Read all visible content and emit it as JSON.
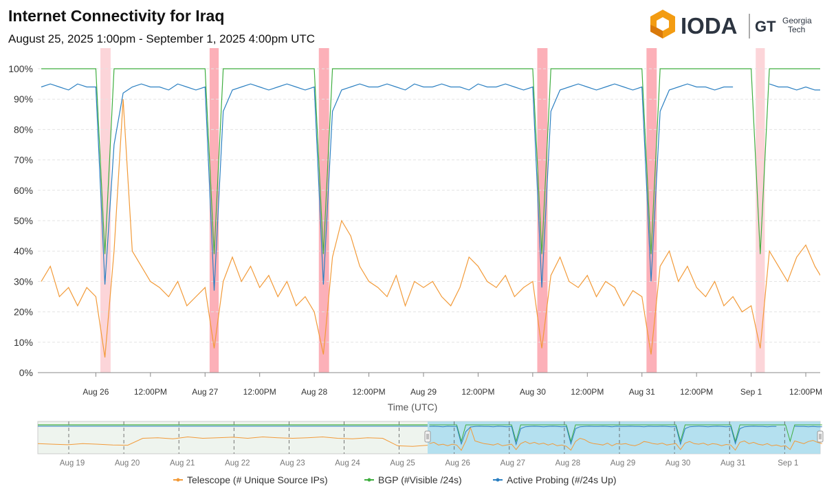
{
  "header": {
    "title": "Internet Connectivity for  Iraq",
    "subtitle": "August 25, 2025 1:00pm - September 1, 2025 4:00pm UTC"
  },
  "logo": {
    "ioda": "IODA",
    "gt": "GT",
    "gt_name_line1": "Georgia",
    "gt_name_line2": "Tech"
  },
  "chart_data": {
    "type": "line",
    "xlabel": "Time (UTC)",
    "ylabel": "",
    "ylim": [
      0,
      100
    ],
    "xlim": [
      "2025-08-25T11:15",
      "2025-09-01T15:10"
    ],
    "y_ticks": [
      "0%",
      "10%",
      "20%",
      "30%",
      "40%",
      "50%",
      "60%",
      "70%",
      "80%",
      "90%",
      "100%"
    ],
    "x_ticks": [
      {
        "t": "2025-08-26T00:00",
        "label": "Aug 26"
      },
      {
        "t": "2025-08-26T12:00",
        "label": "12:00PM"
      },
      {
        "t": "2025-08-27T00:00",
        "label": "Aug 27"
      },
      {
        "t": "2025-08-27T12:00",
        "label": "12:00PM"
      },
      {
        "t": "2025-08-28T00:00",
        "label": "Aug 28"
      },
      {
        "t": "2025-08-28T12:00",
        "label": "12:00PM"
      },
      {
        "t": "2025-08-29T00:00",
        "label": "Aug 29"
      },
      {
        "t": "2025-08-29T12:00",
        "label": "12:00PM"
      },
      {
        "t": "2025-08-30T00:00",
        "label": "Aug 30"
      },
      {
        "t": "2025-08-30T12:00",
        "label": "12:00PM"
      },
      {
        "t": "2025-08-31T00:00",
        "label": "Aug 31"
      },
      {
        "t": "2025-08-31T12:00",
        "label": "12:00PM"
      },
      {
        "t": "2025-09-01T00:00",
        "label": "Sep 1"
      },
      {
        "t": "2025-09-01T12:00",
        "label": "12:00PM"
      }
    ],
    "grid": true,
    "legend_position": "bottom",
    "x_start": "2025-08-25T12:00",
    "step_hours": 2,
    "series": [
      {
        "name": "Telescope (# Unique Source IPs)",
        "color": "#f29a38",
        "values": [
          30,
          35,
          25,
          28,
          22,
          28,
          25,
          5,
          40,
          90,
          40,
          35,
          30,
          28,
          25,
          30,
          22,
          25,
          28,
          8,
          30,
          38,
          30,
          35,
          28,
          32,
          25,
          30,
          22,
          25,
          20,
          6,
          38,
          50,
          45,
          35,
          30,
          28,
          25,
          32,
          22,
          30,
          28,
          30,
          25,
          22,
          28,
          38,
          35,
          30,
          28,
          32,
          25,
          28,
          30,
          8,
          32,
          38,
          30,
          28,
          32,
          25,
          30,
          28,
          22,
          27,
          25,
          6,
          35,
          40,
          30,
          35,
          28,
          25,
          30,
          22,
          25,
          20,
          22,
          8,
          40,
          35,
          30,
          38,
          42,
          35,
          30
        ]
      },
      {
        "name": "BGP (#Visible /24s)",
        "color": "#3fae3f",
        "values": [
          100,
          100,
          100,
          100,
          100,
          100,
          100,
          39,
          100,
          100,
          100,
          100,
          100,
          100,
          100,
          100,
          100,
          100,
          100,
          39,
          100,
          100,
          100,
          100,
          100,
          100,
          100,
          100,
          100,
          100,
          100,
          39,
          100,
          100,
          100,
          100,
          100,
          100,
          100,
          100,
          100,
          100,
          100,
          100,
          100,
          100,
          100,
          100,
          100,
          100,
          100,
          100,
          100,
          100,
          100,
          39,
          100,
          100,
          100,
          100,
          100,
          100,
          100,
          100,
          100,
          100,
          100,
          39,
          100,
          100,
          100,
          100,
          100,
          100,
          100,
          100,
          100,
          100,
          100,
          39,
          100,
          100,
          100,
          100,
          100,
          100,
          100
        ]
      },
      {
        "name": "Active Probing (#/24s Up)",
        "color": "#2a7fc1",
        "values": [
          94,
          95,
          94,
          93,
          95,
          94,
          94,
          29,
          75,
          92,
          94,
          95,
          94,
          94,
          93,
          95,
          94,
          93,
          94,
          27,
          86,
          93,
          94,
          95,
          94,
          93,
          94,
          95,
          94,
          93,
          94,
          29,
          86,
          93,
          94,
          95,
          94,
          94,
          95,
          94,
          93,
          95,
          94,
          94,
          95,
          94,
          94,
          93,
          95,
          94,
          94,
          95,
          94,
          93,
          94,
          28,
          86,
          93,
          94,
          95,
          94,
          93,
          94,
          95,
          94,
          93,
          94,
          30,
          86,
          93,
          94,
          95,
          94,
          94,
          93,
          94,
          94,
          null,
          null,
          null,
          95,
          94,
          94,
          93,
          94,
          93,
          93
        ]
      }
    ],
    "outages": [
      {
        "start": "2025-08-26T01:00",
        "end": "2025-08-26T03:15",
        "severity": "low",
        "color": "#fcd5d9"
      },
      {
        "start": "2025-08-27T01:00",
        "end": "2025-08-27T03:00",
        "severity": "high",
        "color": "#fcb0b8"
      },
      {
        "start": "2025-08-28T01:00",
        "end": "2025-08-28T03:15",
        "severity": "high",
        "color": "#fcb0b8"
      },
      {
        "start": "2025-08-30T01:00",
        "end": "2025-08-30T03:15",
        "severity": "high",
        "color": "#fcb0b8"
      },
      {
        "start": "2025-08-31T01:00",
        "end": "2025-08-31T03:15",
        "severity": "high",
        "color": "#fcb0b8"
      },
      {
        "start": "2025-09-01T01:00",
        "end": "2025-09-01T03:00",
        "severity": "low",
        "color": "#fcd5d9"
      }
    ]
  },
  "navigator": {
    "x_ticks": [
      "Aug 19",
      "Aug 20",
      "Aug 21",
      "Aug 22",
      "Aug 23",
      "Aug 24",
      "Aug 25",
      "Aug 26",
      "Aug 27",
      "Aug 28",
      "Aug 29",
      "Aug 30",
      "Aug 31",
      "Sep 1"
    ],
    "history_telescope": [
      30,
      28,
      26,
      30,
      28,
      25,
      24,
      50,
      52,
      48,
      55,
      50,
      52,
      54,
      50,
      55,
      52,
      50,
      52,
      55,
      50,
      48,
      52,
      50,
      22,
      20,
      24
    ]
  }
}
